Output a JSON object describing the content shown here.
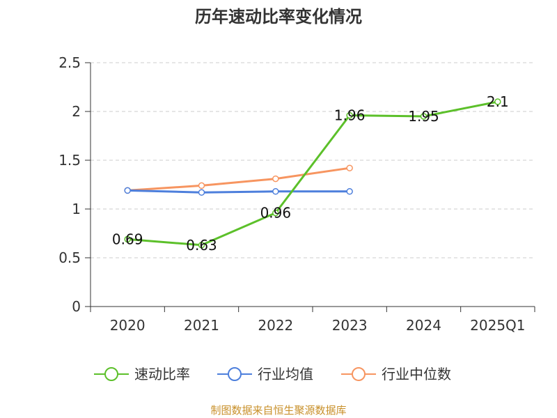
{
  "chart_data": {
    "type": "line",
    "title": "历年速动比率变化情况",
    "categories": [
      "2020",
      "2021",
      "2022",
      "2023",
      "2024",
      "2025Q1"
    ],
    "ylim": [
      0,
      2.5
    ],
    "yticks": [
      "0",
      "0.5",
      "1",
      "1.5",
      "2",
      "2.5"
    ],
    "grid": true,
    "legend_position": "bottom",
    "series": [
      {
        "name": "速动比率",
        "color": "#5cc02a",
        "values": [
          0.69,
          0.63,
          0.96,
          1.96,
          1.95,
          2.1
        ],
        "labels": [
          "0.69",
          "0.63",
          "0.96",
          "1.96",
          "1.95",
          "2.1"
        ]
      },
      {
        "name": "行业均值",
        "color": "#4d7fdc",
        "values": [
          1.19,
          1.17,
          1.18,
          1.18,
          null,
          null
        ]
      },
      {
        "name": "行业中位数",
        "color": "#f79560",
        "values": [
          1.19,
          1.24,
          1.31,
          1.42,
          null,
          null
        ]
      }
    ]
  },
  "footer": "制图数据来自恒生聚源数据库"
}
